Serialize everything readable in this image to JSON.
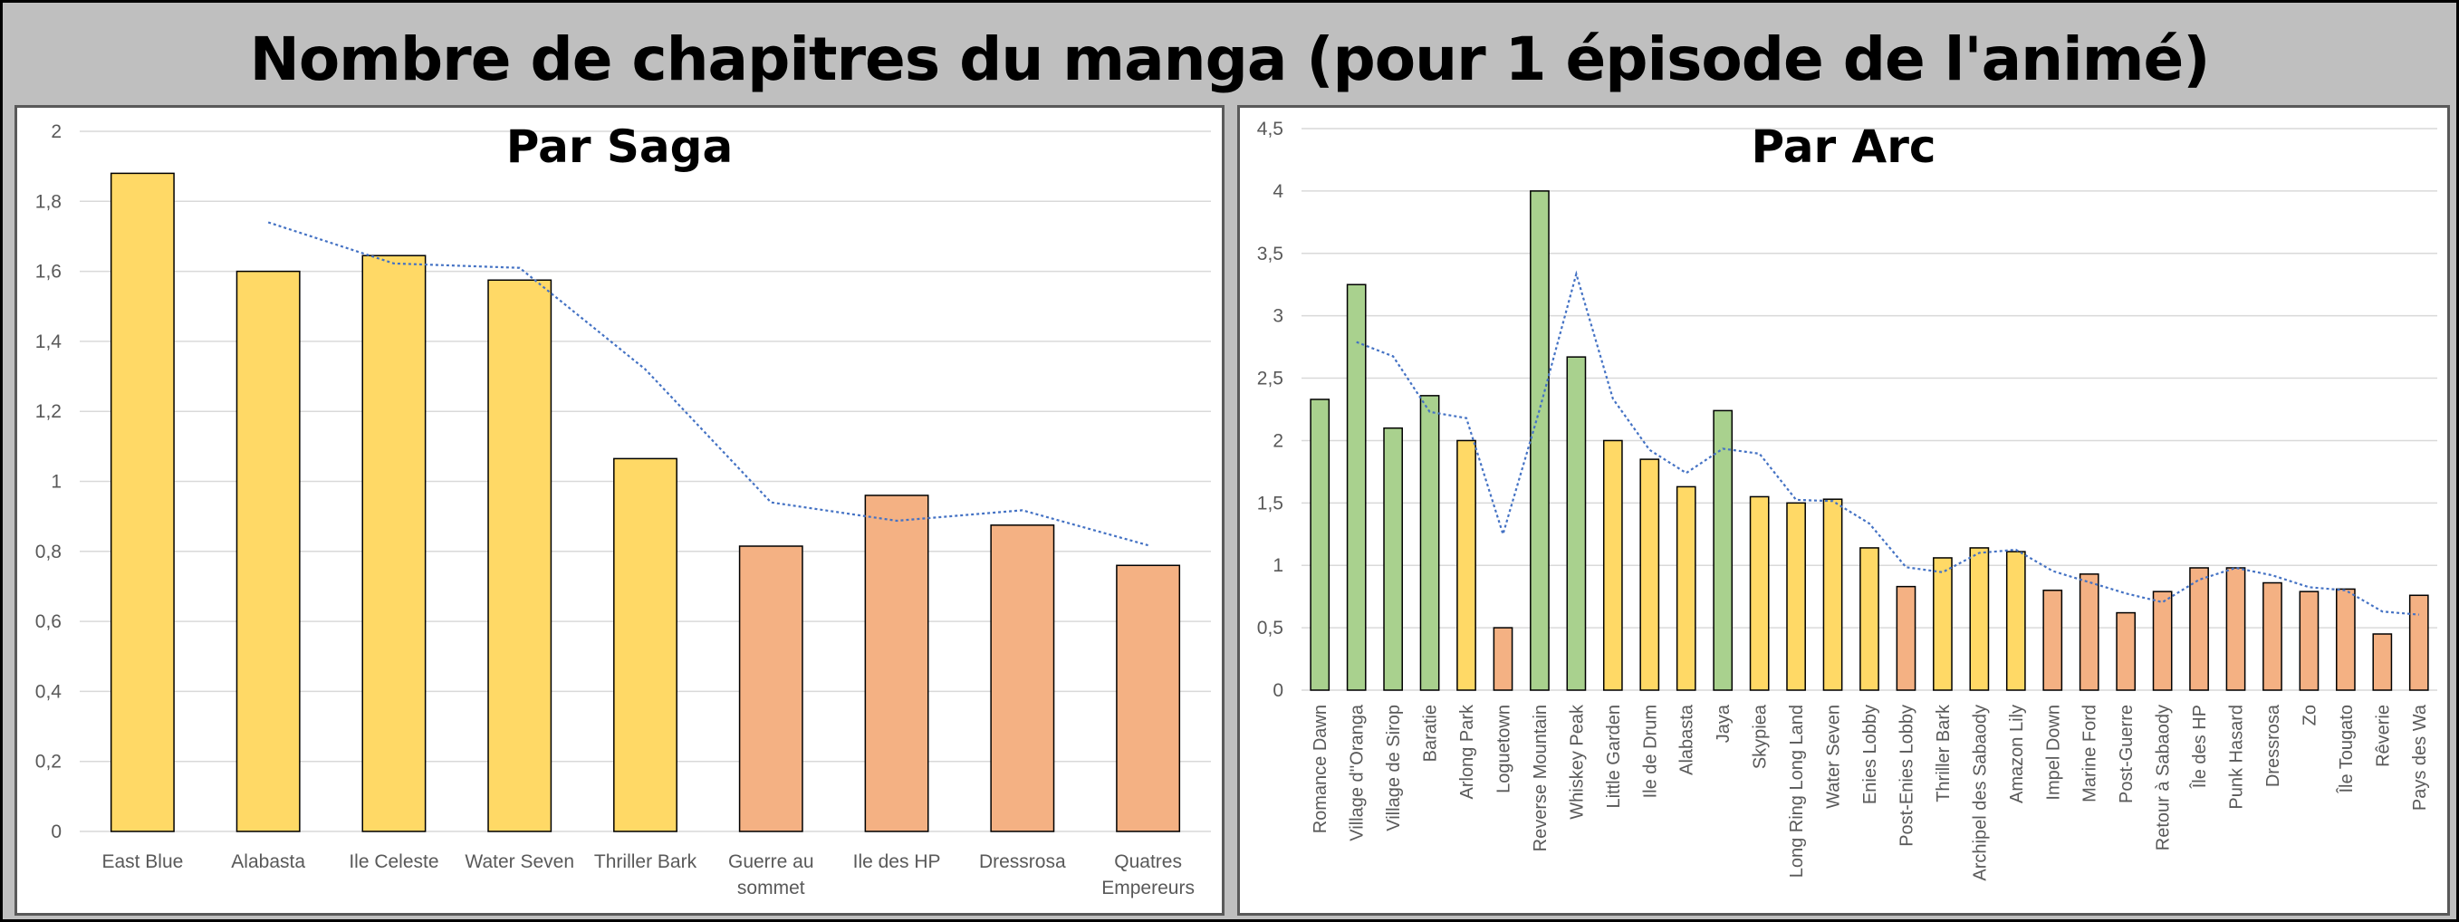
{
  "title": "Nombre de chapitres du manga (pour 1 épisode de l'animé)",
  "colors": {
    "east_blue_yellow": "#ffd966",
    "green": "#a9d18e",
    "orange": "#f4b183",
    "trend": "#4472c4",
    "grid": "#d9d9d9"
  },
  "chart_data": [
    {
      "type": "bar",
      "title": "Par Saga",
      "categories": [
        "East Blue",
        "Alabasta",
        "Ile Celeste",
        "Water Seven",
        "Thriller Bark",
        "Guerre au sommet",
        "Ile des HP",
        "Dressrosa",
        "Quatres Empereurs"
      ],
      "category_lines": [
        [
          "East Blue"
        ],
        [
          "Alabasta"
        ],
        [
          "Ile Celeste"
        ],
        [
          "Water Seven"
        ],
        [
          "Thriller Bark"
        ],
        [
          "Guerre au",
          "sommet"
        ],
        [
          "Ile des HP"
        ],
        [
          "Dressrosa"
        ],
        [
          "Quatres",
          "Empereurs"
        ]
      ],
      "values": [
        1.88,
        1.6,
        1.645,
        1.575,
        1.065,
        0.815,
        0.96,
        0.875,
        0.76
      ],
      "bar_colors": [
        "yellow",
        "yellow",
        "yellow",
        "yellow",
        "yellow",
        "orange",
        "orange",
        "orange",
        "orange"
      ],
      "trendline": {
        "type": "moving_average",
        "period": 2
      },
      "ylim": [
        0,
        2
      ],
      "yticks": [
        "0",
        "0,2",
        "0,4",
        "0,6",
        "0,8",
        "1",
        "1,2",
        "1,4",
        "1,6",
        "1,8",
        "2"
      ],
      "grid": true
    },
    {
      "type": "bar",
      "title": "Par Arc",
      "categories": [
        "Romance Dawn",
        "Village d''Oranga",
        "Village de Sirop",
        "Baratie",
        "Arlong Park",
        "Loguetown",
        "Reverse Mountain",
        "Whiskey Peak",
        "Little Garden",
        "Ile de Drum",
        "Alabasta",
        "Jaya",
        "Skypiea",
        "Long Ring Long Land",
        "Water Seven",
        "Enies Lobby",
        "Post-Enies Lobby",
        "Thriller Bark",
        "Archipel des Sabaody",
        "Amazon Lily",
        "Impel Down",
        "Marine Ford",
        "Post-Guerre",
        "Retour à Sabaody",
        "Île des HP",
        "Punk Hasard",
        "Dressrosa",
        "Zo",
        "Île Tougato",
        "Rêverie",
        "Pays des Wa"
      ],
      "values": [
        2.33,
        3.25,
        2.1,
        2.36,
        2.0,
        0.5,
        4.0,
        2.67,
        2.0,
        1.85,
        1.63,
        2.24,
        1.55,
        1.5,
        1.53,
        1.14,
        0.83,
        1.06,
        1.14,
        1.11,
        0.8,
        0.93,
        0.62,
        0.79,
        0.98,
        0.98,
        0.86,
        0.79,
        0.81,
        0.45,
        0.76
      ],
      "bar_colors": [
        "green",
        "green",
        "green",
        "green",
        "yellow",
        "orange",
        "green",
        "green",
        "yellow",
        "yellow",
        "yellow",
        "green",
        "yellow",
        "yellow",
        "yellow",
        "yellow",
        "orange",
        "yellow",
        "yellow",
        "yellow",
        "orange",
        "orange",
        "orange",
        "orange",
        "orange",
        "orange",
        "orange",
        "orange",
        "orange",
        "orange",
        "orange"
      ],
      "trendline": {
        "type": "moving_average",
        "period": 2
      },
      "ylim": [
        0,
        4.5
      ],
      "yticks": [
        "0",
        "0,5",
        "1",
        "1,5",
        "2",
        "2,5",
        "3",
        "3,5",
        "4",
        "4,5"
      ],
      "grid": true
    }
  ]
}
